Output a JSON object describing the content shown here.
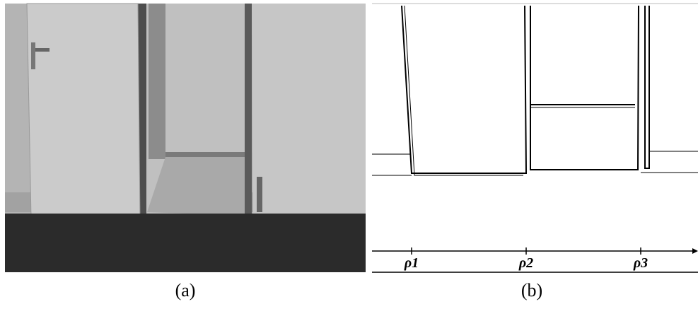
{
  "figure": {
    "panels": [
      {
        "caption": "(a)"
      },
      {
        "caption": "(b)",
        "axis_labels": [
          "ρ1",
          "ρ2",
          "ρ3"
        ]
      }
    ]
  }
}
